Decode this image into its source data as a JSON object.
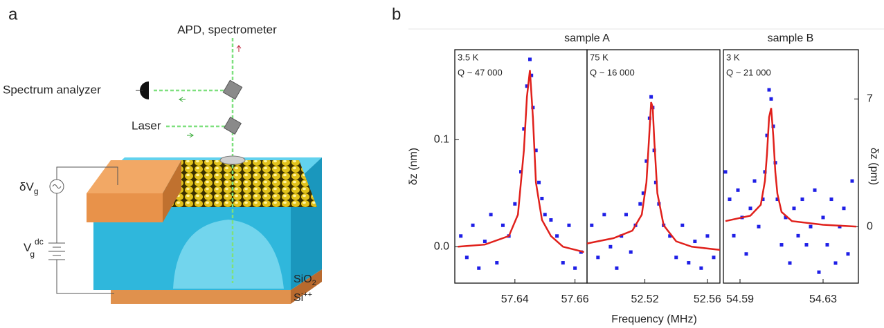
{
  "panel_labels": [
    "a",
    "b"
  ],
  "diagram": {
    "apd": "APD, spectrometer",
    "spectrum_analyzer": "Spectrum analyzer",
    "laser": "Laser",
    "ac_source": {
      "main": "δV",
      "sub": "g"
    },
    "dc_source": {
      "main": "V",
      "sub": "g",
      "sup": "dc"
    },
    "oxide": {
      "main": "SiO",
      "sub": "2"
    },
    "substrate": {
      "main": "Si",
      "sup": "++"
    }
  },
  "panel_b": {
    "xlabel": "Frequency (MHz)"
  },
  "chart_data": [
    {
      "type": "scatter",
      "title": "sample A",
      "ylabel": "δz (nm)",
      "annotations": [
        "3.5 K",
        "Q ~ 47 000"
      ],
      "xlim": [
        57.62,
        57.664
      ],
      "xticks": [
        57.64,
        57.66
      ],
      "ylim": [
        -0.034,
        0.184
      ],
      "yticks": [
        {
          "value": 0,
          "label": "0.0"
        },
        0.1
      ],
      "series": [
        {
          "type": "scatter",
          "color": "#1f1fe6",
          "x": [
            57.622,
            57.624,
            57.626,
            57.628,
            57.63,
            57.632,
            57.634,
            57.636,
            57.638,
            57.64,
            57.642,
            57.643,
            57.644,
            57.645,
            57.6455,
            57.646,
            57.647,
            57.648,
            57.649,
            57.65,
            57.652,
            57.654,
            57.656,
            57.658,
            57.66,
            57.662
          ],
          "values": [
            0.01,
            -0.01,
            0.02,
            -0.02,
            0.005,
            0.03,
            -0.015,
            0.02,
            0.01,
            0.04,
            0.07,
            0.11,
            0.15,
            0.175,
            0.16,
            0.13,
            0.09,
            0.06,
            0.045,
            0.03,
            0.025,
            0.01,
            -0.015,
            0.02,
            -0.02,
            -0.005
          ]
        },
        {
          "type": "line",
          "color": "#e0201b",
          "x": [
            57.621,
            57.63,
            57.638,
            57.641,
            57.643,
            57.644,
            57.645,
            57.646,
            57.647,
            57.649,
            57.652,
            57.656,
            57.663
          ],
          "values": [
            0.0,
            0.002,
            0.01,
            0.03,
            0.09,
            0.14,
            0.165,
            0.12,
            0.06,
            0.025,
            0.01,
            0.0,
            -0.005
          ]
        }
      ]
    },
    {
      "type": "scatter",
      "annotations": [
        "75 K",
        "Q ~ 16 000"
      ],
      "xlim": [
        52.483,
        52.568
      ],
      "xticks": [
        52.52,
        52.56
      ],
      "ylim": [
        -0.034,
        0.184
      ],
      "series": [
        {
          "type": "scatter",
          "color": "#1f1fe6",
          "x": [
            52.486,
            52.49,
            52.494,
            52.498,
            52.502,
            52.505,
            52.508,
            52.511,
            52.514,
            52.517,
            52.519,
            52.521,
            52.523,
            52.524,
            52.525,
            52.526,
            52.527,
            52.529,
            52.532,
            52.536,
            52.54,
            52.544,
            52.548,
            52.552,
            52.556,
            52.56,
            52.564
          ],
          "values": [
            0.02,
            -0.01,
            0.03,
            0.0,
            -0.02,
            0.01,
            0.03,
            -0.005,
            0.02,
            0.04,
            0.05,
            0.08,
            0.12,
            0.14,
            0.13,
            0.09,
            0.06,
            0.04,
            0.02,
            0.01,
            -0.01,
            0.02,
            -0.015,
            0.005,
            -0.02,
            0.01,
            -0.01
          ]
        },
        {
          "type": "line",
          "color": "#e0201b",
          "x": [
            52.483,
            52.5,
            52.512,
            52.518,
            52.521,
            52.523,
            52.524,
            52.525,
            52.526,
            52.528,
            52.532,
            52.54,
            52.55,
            52.568
          ],
          "values": [
            0.003,
            0.008,
            0.015,
            0.03,
            0.06,
            0.11,
            0.135,
            0.13,
            0.1,
            0.05,
            0.02,
            0.005,
            0.0,
            -0.003
          ]
        }
      ]
    },
    {
      "type": "scatter",
      "title": "sample B",
      "y2label": "δz (pm)",
      "annotations": [
        "3 K",
        "Q ~ 21 000"
      ],
      "xlim": [
        54.582,
        54.647
      ],
      "xticks": [
        54.59,
        54.63
      ],
      "y2lim": [
        -3.1,
        9.7
      ],
      "y2ticks": [
        0,
        7
      ],
      "series": [
        {
          "type": "scatter",
          "color": "#1f1fe6",
          "axis": "y2",
          "x": [
            54.583,
            54.585,
            54.587,
            54.589,
            54.591,
            54.593,
            54.595,
            54.597,
            54.599,
            54.601,
            54.602,
            54.603,
            54.604,
            54.605,
            54.606,
            54.607,
            54.608,
            54.61,
            54.612,
            54.614,
            54.616,
            54.618,
            54.62,
            54.622,
            54.624,
            54.626,
            54.628,
            54.63,
            54.632,
            54.634,
            54.636,
            54.638,
            54.64,
            54.642,
            54.644
          ],
          "values": [
            3.0,
            1.5,
            -0.5,
            2.0,
            0.5,
            -1.5,
            1.0,
            2.5,
            0.0,
            1.5,
            3.0,
            5.0,
            7.5,
            7.0,
            5.5,
            3.5,
            1.5,
            -1.0,
            0.5,
            -2.0,
            1.0,
            -0.5,
            1.5,
            -1.0,
            0.0,
            2.0,
            -2.5,
            0.5,
            -1.0,
            1.5,
            -2.0,
            0.0,
            1.0,
            -1.5,
            2.5
          ]
        },
        {
          "type": "line",
          "color": "#e0201b",
          "axis": "y2",
          "x": [
            54.583,
            54.595,
            54.6,
            54.602,
            54.603,
            54.604,
            54.605,
            54.606,
            54.607,
            54.608,
            54.61,
            54.615,
            54.63,
            54.646
          ],
          "values": [
            0.3,
            0.6,
            1.2,
            2.5,
            4.0,
            6.0,
            6.5,
            5.0,
            3.0,
            1.8,
            0.8,
            0.3,
            0.1,
            0.0
          ]
        }
      ]
    }
  ]
}
